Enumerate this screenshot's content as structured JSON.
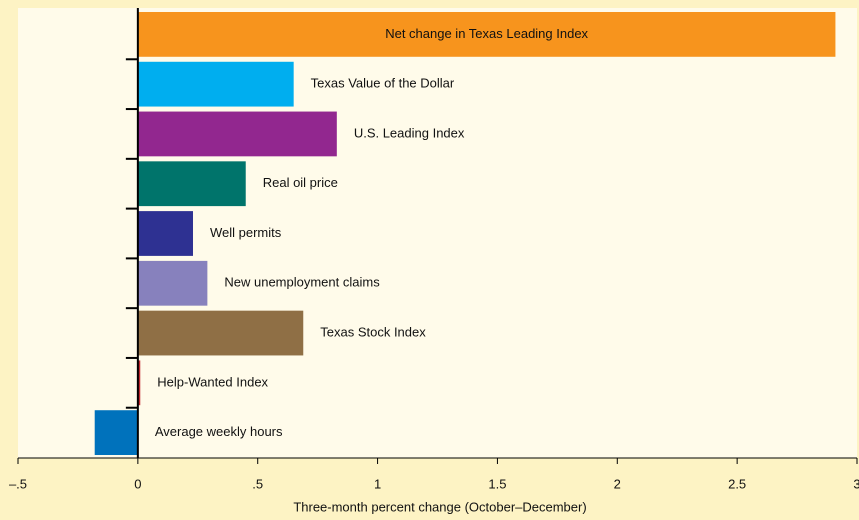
{
  "chart_data": {
    "type": "barh",
    "x_label": "Three-month percent change (October–December)",
    "categories": [
      "Net change in Texas Leading Index",
      "Texas Value of the Dollar",
      "U.S. Leading Index",
      "Real oil price",
      "Well permits",
      "New unemployment claims",
      "Texas Stock Index",
      "Help-Wanted Index",
      "Average weekly hours"
    ],
    "values": [
      2.91,
      0.65,
      0.83,
      0.45,
      0.23,
      0.29,
      0.69,
      0.01,
      -0.18
    ],
    "colors": [
      "#f7941d",
      "#00aeef",
      "#92278f",
      "#00746b",
      "#2e3192",
      "#8781bd",
      "#8f6f45",
      "#c1272d",
      "#0072bc"
    ],
    "xlim": [
      -0.5,
      3
    ],
    "xticks": [
      {
        "value": -0.5,
        "label": "–.5"
      },
      0,
      {
        "value": 0.5,
        "label": ".5"
      },
      1,
      1.5,
      2,
      2.5,
      3
    ]
  }
}
